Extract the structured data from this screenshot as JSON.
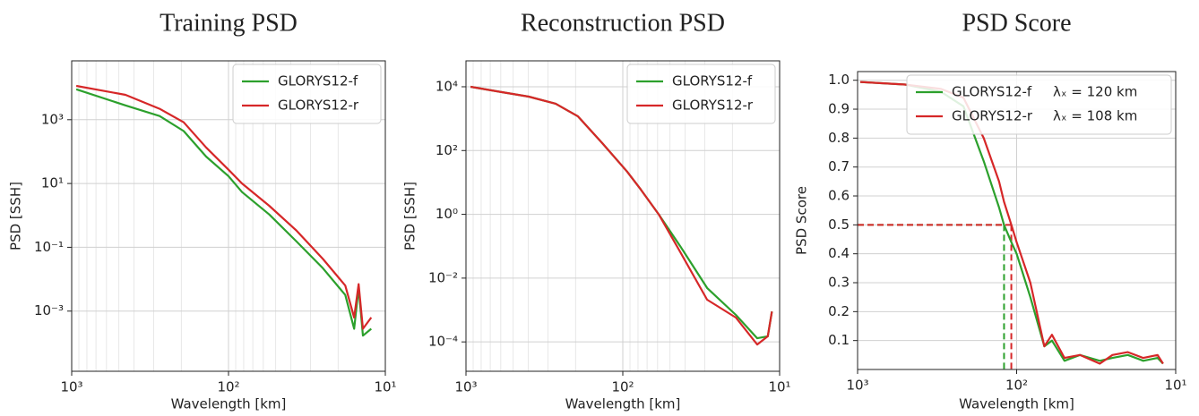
{
  "chart_data": [
    {
      "type": "line",
      "title": "Training PSD",
      "xlabel": "Wavelength [km]",
      "ylabel": "PSD [SSH]",
      "xscale": "log",
      "yscale": "log",
      "xlim": [
        1000,
        10
      ],
      "ylim": [
        1.3e-05,
        70000
      ],
      "xticks": [
        {
          "value": 1000,
          "label": "10³"
        },
        {
          "value": 100,
          "label": "10²"
        },
        {
          "value": 10,
          "label": "10¹"
        }
      ],
      "xminorticks": [
        900,
        800,
        700,
        600,
        500,
        400,
        300,
        200,
        90,
        80,
        70,
        60,
        50,
        40,
        30,
        20
      ],
      "yticks": [
        {
          "value": 1000,
          "label": "10³"
        },
        {
          "value": 10,
          "label": "10¹"
        },
        {
          "value": 0.1,
          "label": "10⁻¹"
        },
        {
          "value": 0.001,
          "label": "10⁻³"
        }
      ],
      "grid": true,
      "legend": "upper right",
      "x": [
        935,
        454,
        275,
        193,
        139,
        100,
        82,
        55,
        37,
        25,
        18,
        15.8,
        14.8,
        13.9,
        12.3
      ],
      "series": [
        {
          "name": "GLORYS12-f",
          "color": "#2ca02c",
          "values": [
            9000,
            2800,
            1300,
            440,
            70,
            17,
            5.4,
            1.07,
            0.155,
            0.022,
            0.0032,
            0.00028,
            0.0054,
            0.00017,
            0.00028
          ]
        },
        {
          "name": "GLORYS12-r",
          "color": "#d62728",
          "values": [
            11500,
            6000,
            2200,
            830,
            135,
            27,
            10,
            2.0,
            0.34,
            0.043,
            0.0063,
            0.00063,
            0.007,
            0.00028,
            0.00063
          ]
        }
      ]
    },
    {
      "type": "line",
      "title": "Reconstruction PSD",
      "xlabel": "Wavelength [km]",
      "ylabel": "PSD [SSH]",
      "xscale": "log",
      "yscale": "log",
      "xlim": [
        1000,
        10
      ],
      "ylim": [
        1.2e-05,
        65000
      ],
      "xticks": [
        {
          "value": 1000,
          "label": "10³"
        },
        {
          "value": 100,
          "label": "10²"
        },
        {
          "value": 10,
          "label": "10¹"
        }
      ],
      "xminorticks": [
        900,
        800,
        700,
        600,
        500,
        400,
        300,
        200,
        90,
        80,
        70,
        60,
        50,
        40,
        30,
        20
      ],
      "yticks": [
        {
          "value": 10000,
          "label": "10⁴"
        },
        {
          "value": 100,
          "label": "10²"
        },
        {
          "value": 1,
          "label": "10⁰"
        },
        {
          "value": 0.01,
          "label": "10⁻²"
        },
        {
          "value": 0.0001,
          "label": "10⁻⁴"
        }
      ],
      "grid": true,
      "legend": "upper right",
      "x": [
        935,
        590,
        398,
        268,
        193,
        135,
        94,
        77,
        59,
        43,
        29,
        19,
        13.9,
        11.9,
        11.2
      ],
      "series": [
        {
          "name": "GLORYS12-f",
          "color": "#2ca02c",
          "values": [
            10000,
            6800,
            4900,
            2950,
            1180,
            170,
            22,
            6.1,
            1,
            0.1,
            0.0049,
            0.0007,
            0.00013,
            0.00015,
            0.0009
          ]
        },
        {
          "name": "GLORYS12-r",
          "color": "#d62728",
          "values": [
            10000,
            6800,
            4900,
            2950,
            1180,
            170,
            22,
            6.1,
            1,
            0.066,
            0.0021,
            0.00058,
            8.3e-05,
            0.00015,
            0.0009
          ]
        }
      ]
    },
    {
      "type": "line",
      "title": "PSD Score",
      "xlabel": "Wavelength [km]",
      "ylabel": "PSD Score",
      "xscale": "log",
      "yscale": "linear",
      "xlim": [
        1000,
        10
      ],
      "ylim": [
        0,
        1.03
      ],
      "xticks": [
        {
          "value": 1000,
          "label": "10³"
        },
        {
          "value": 100,
          "label": "10²"
        },
        {
          "value": 10,
          "label": "10¹"
        }
      ],
      "yticks": [
        0.1,
        0.2,
        0.3,
        0.4,
        0.5,
        0.6,
        0.7,
        0.8,
        0.9,
        {
          "value": 1,
          "label": "1.0"
        }
      ],
      "grid": true,
      "legend": "upper right",
      "score_level": 0.5,
      "x": [
        962,
        502,
        299,
        216,
        161,
        129,
        120,
        108,
        100,
        82,
        67,
        60,
        50,
        40,
        30,
        25,
        20,
        16,
        13,
        12
      ],
      "series": [
        {
          "name": "GLORYS12-f",
          "color": "#2ca02c",
          "cutoff": 120,
          "cutoff_label": "λₓ = 120 km",
          "values": [
            0.994,
            0.985,
            0.96,
            0.91,
            0.72,
            0.56,
            0.5,
            0.44,
            0.4,
            0.25,
            0.08,
            0.1,
            0.03,
            0.05,
            0.03,
            0.04,
            0.05,
            0.03,
            0.04,
            0.02
          ]
        },
        {
          "name": "GLORYS12-r",
          "color": "#d62728",
          "cutoff": 108,
          "cutoff_label": "λₓ = 108 km",
          "values": [
            0.994,
            0.985,
            0.97,
            0.94,
            0.8,
            0.65,
            0.58,
            0.5,
            0.44,
            0.3,
            0.08,
            0.12,
            0.04,
            0.05,
            0.02,
            0.05,
            0.06,
            0.04,
            0.05,
            0.02
          ]
        }
      ]
    }
  ]
}
